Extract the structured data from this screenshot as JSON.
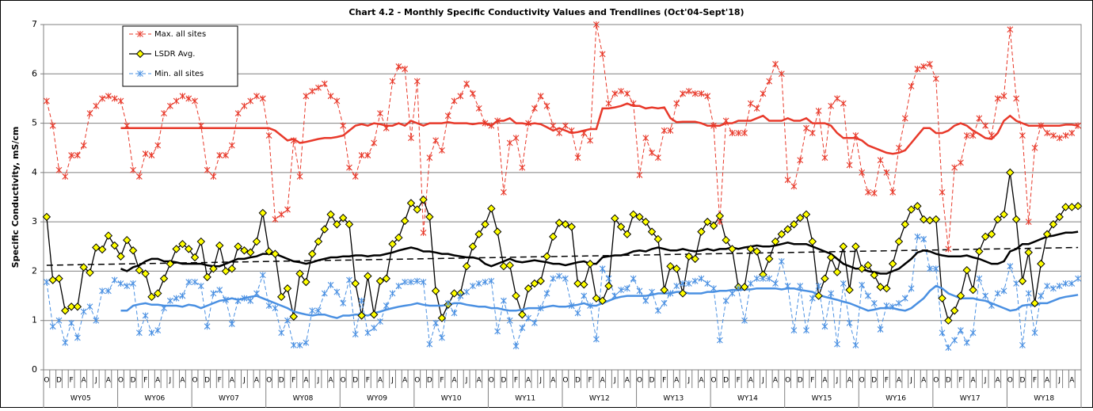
{
  "chart_data": {
    "type": "line",
    "title": "Chart 4.2 - Monthly Specific Conductivity Values and Trendlines (Oct'04-Sept'18)",
    "y_label": "Specific Conductivity, mS/cm",
    "categories": [
      "O",
      null,
      "D",
      null,
      "F",
      null,
      "A",
      null,
      "J",
      null,
      "A",
      null,
      "O",
      null,
      "D",
      null,
      "F",
      null,
      "A",
      null,
      "J",
      null,
      "A",
      null,
      "O",
      null,
      "D",
      null,
      "F",
      null,
      "A",
      null,
      "J",
      null,
      "A",
      null,
      "O",
      null,
      "D",
      null,
      "F",
      null,
      "A",
      null,
      "J",
      null,
      "A",
      null,
      "O",
      null,
      "D",
      null,
      "F",
      null,
      "A",
      null,
      "J",
      null,
      "A",
      null,
      "O",
      null,
      "D",
      null,
      "F",
      null,
      "A",
      null,
      "J",
      null,
      "A",
      null,
      "O",
      null,
      "D",
      null,
      "F",
      null,
      "A",
      null,
      "J",
      null,
      "A",
      null,
      "O",
      null,
      "D",
      null,
      "F",
      null,
      "A",
      null,
      "J",
      null,
      "A",
      null,
      "O",
      null,
      "D",
      null,
      "F",
      null,
      "A",
      null,
      "J",
      null,
      "A",
      null,
      "O",
      null,
      "D",
      null,
      "F",
      null,
      "A",
      null,
      "J",
      null,
      "A",
      null,
      "O",
      null,
      "D",
      null,
      "F",
      null,
      "A",
      null,
      "J",
      null,
      "A",
      null,
      "O",
      null,
      "D",
      null,
      "F",
      null,
      "A",
      null,
      "J",
      null,
      "A",
      null,
      "O",
      null,
      "D",
      null,
      "F",
      null,
      "A",
      null,
      "J",
      null,
      "A",
      null,
      "O",
      null,
      "D",
      null,
      "F",
      null,
      "A",
      null,
      "J",
      null,
      "A",
      null
    ],
    "groups": [
      "WY05",
      "WY06",
      "WY07",
      "WY08",
      "WY09",
      "WY10",
      "WY11",
      "WY12",
      "WY13",
      "WY14",
      "WY15",
      "WY16",
      "WY17",
      "WY18"
    ],
    "ylim": [
      0,
      7
    ],
    "yticks": [
      0,
      1,
      2,
      3,
      4,
      5,
      6,
      7
    ],
    "grid": true,
    "series": [
      {
        "name": "Max. all sites",
        "color": "#e8392a",
        "marker": "star",
        "values": [
          5.45,
          4.95,
          4.05,
          3.92,
          4.35,
          4.35,
          4.55,
          5.2,
          5.35,
          5.5,
          5.55,
          5.5,
          5.45,
          4.95,
          4.05,
          3.92,
          4.38,
          4.35,
          4.55,
          5.2,
          5.35,
          5.45,
          5.55,
          5.5,
          5.45,
          4.95,
          4.05,
          3.92,
          4.35,
          4.35,
          4.55,
          5.2,
          5.35,
          5.45,
          5.55,
          5.5,
          4.75,
          3.05,
          3.15,
          3.25,
          4.65,
          3.92,
          5.55,
          5.65,
          5.72,
          5.8,
          5.55,
          5.45,
          4.95,
          4.1,
          3.92,
          4.35,
          4.35,
          4.6,
          5.2,
          4.9,
          5.85,
          6.15,
          6.1,
          4.7,
          5.85,
          2.78,
          4.3,
          4.65,
          4.45,
          5.15,
          5.45,
          5.55,
          5.8,
          5.6,
          5.3,
          5.0,
          4.95,
          5.05,
          3.6,
          4.6,
          4.7,
          4.1,
          5.0,
          5.3,
          5.55,
          5.35,
          4.95,
          4.8,
          4.95,
          4.85,
          4.3,
          4.8,
          4.65,
          7.0,
          6.4,
          5.4,
          5.6,
          5.65,
          5.6,
          5.4,
          3.95,
          4.7,
          4.4,
          4.3,
          4.85,
          4.85,
          5.4,
          5.6,
          5.65,
          5.6,
          5.6,
          5.55,
          4.95,
          3.0,
          5.05,
          4.8,
          4.8,
          4.8,
          5.4,
          5.3,
          5.6,
          5.85,
          6.2,
          6.0,
          3.85,
          3.72,
          4.25,
          4.9,
          4.8,
          5.25,
          4.3,
          5.35,
          5.5,
          5.4,
          4.15,
          4.75,
          4.0,
          3.6,
          3.58,
          4.25,
          4.0,
          3.6,
          4.5,
          5.1,
          5.75,
          6.1,
          6.15,
          6.2,
          5.9,
          3.6,
          2.45,
          4.1,
          4.2,
          4.75,
          4.75,
          5.1,
          4.95,
          4.75,
          5.5,
          5.55,
          6.9,
          5.5,
          4.75,
          3.0,
          4.5,
          4.95,
          4.8,
          4.75,
          4.7,
          4.75,
          4.8,
          4.95
        ]
      },
      {
        "name": "LSDR Avg.",
        "color": "#000000",
        "marker": "diamond",
        "values": [
          3.1,
          1.82,
          1.85,
          1.2,
          1.28,
          1.28,
          2.08,
          1.97,
          2.48,
          2.44,
          2.72,
          2.52,
          2.3,
          2.63,
          2.42,
          2.02,
          1.95,
          1.48,
          1.55,
          1.85,
          2.15,
          2.45,
          2.55,
          2.45,
          2.28,
          2.6,
          1.88,
          2.05,
          2.52,
          2.0,
          2.05,
          2.5,
          2.42,
          2.38,
          2.6,
          3.18,
          2.4,
          2.35,
          1.48,
          1.65,
          1.08,
          1.95,
          1.78,
          2.35,
          2.6,
          2.85,
          3.15,
          2.95,
          3.08,
          2.95,
          1.75,
          1.1,
          1.9,
          1.12,
          1.8,
          1.85,
          2.55,
          2.68,
          3.02,
          3.38,
          3.25,
          3.45,
          3.1,
          1.6,
          1.05,
          1.32,
          1.55,
          1.55,
          2.1,
          2.5,
          2.75,
          2.95,
          3.27,
          2.8,
          2.1,
          2.12,
          1.5,
          1.12,
          1.65,
          1.75,
          1.8,
          2.3,
          2.7,
          2.98,
          2.95,
          2.9,
          1.75,
          1.73,
          2.15,
          1.45,
          1.4,
          1.7,
          3.07,
          2.9,
          2.75,
          3.15,
          3.1,
          3.0,
          2.8,
          2.65,
          1.62,
          2.1,
          2.05,
          1.55,
          2.3,
          2.25,
          2.8,
          3.0,
          2.92,
          3.12,
          2.63,
          2.45,
          1.68,
          1.68,
          2.45,
          2.4,
          1.93,
          2.25,
          2.6,
          2.75,
          2.85,
          2.95,
          3.08,
          3.15,
          2.6,
          1.5,
          1.85,
          2.28,
          1.98,
          2.5,
          1.62,
          2.5,
          2.05,
          2.12,
          1.92,
          1.68,
          1.65,
          2.15,
          2.6,
          2.95,
          3.25,
          3.32,
          3.05,
          3.03,
          3.05,
          1.45,
          1.0,
          1.2,
          1.5,
          2.02,
          1.62,
          2.4,
          2.7,
          2.75,
          3.05,
          3.15,
          4.0,
          3.05,
          1.8,
          2.38,
          1.35,
          2.15,
          2.75,
          2.95,
          3.1,
          3.3,
          3.3,
          3.32
        ]
      },
      {
        "name": "Min. all sites",
        "color": "#4a90e2",
        "marker": "star",
        "values": [
          1.78,
          0.88,
          1.0,
          0.55,
          0.95,
          0.65,
          1.18,
          1.28,
          1.0,
          1.6,
          1.6,
          1.82,
          1.75,
          1.7,
          1.75,
          0.75,
          1.1,
          0.75,
          0.8,
          1.25,
          1.4,
          1.45,
          1.5,
          1.78,
          1.78,
          1.7,
          0.88,
          1.55,
          1.62,
          1.42,
          0.93,
          1.4,
          1.45,
          1.4,
          1.55,
          1.92,
          1.3,
          1.25,
          0.75,
          1.0,
          0.5,
          0.5,
          0.55,
          1.2,
          1.2,
          1.55,
          1.72,
          1.58,
          1.35,
          1.82,
          0.72,
          1.4,
          0.75,
          0.85,
          0.98,
          1.3,
          1.55,
          1.7,
          1.78,
          1.78,
          1.8,
          1.78,
          0.52,
          0.95,
          0.65,
          1.35,
          1.15,
          1.5,
          1.58,
          1.7,
          1.75,
          1.78,
          1.8,
          0.78,
          1.4,
          1.0,
          0.48,
          0.85,
          1.05,
          0.95,
          1.25,
          1.55,
          1.85,
          1.9,
          1.85,
          1.3,
          1.15,
          1.5,
          1.3,
          0.62,
          2.05,
          1.85,
          1.5,
          1.62,
          1.65,
          1.85,
          1.6,
          1.4,
          1.58,
          1.2,
          1.35,
          1.55,
          1.7,
          1.75,
          1.75,
          1.8,
          1.85,
          1.75,
          1.65,
          0.6,
          1.4,
          1.55,
          1.65,
          1.0,
          1.75,
          1.85,
          1.85,
          1.85,
          1.75,
          2.2,
          1.7,
          0.8,
          1.7,
          0.8,
          1.45,
          1.7,
          0.88,
          1.55,
          0.52,
          1.75,
          0.95,
          0.5,
          1.72,
          1.5,
          1.35,
          0.82,
          1.3,
          1.28,
          1.35,
          1.45,
          1.65,
          2.7,
          2.65,
          2.05,
          2.05,
          0.75,
          0.45,
          0.6,
          0.8,
          0.55,
          0.75,
          1.85,
          1.5,
          1.3,
          1.55,
          1.6,
          2.1,
          1.75,
          0.5,
          1.55,
          0.75,
          1.5,
          1.7,
          1.65,
          1.7,
          1.75,
          1.75,
          1.85
        ]
      }
    ],
    "trendlines": [
      {
        "color": "#e8392a",
        "values": [
          null,
          null,
          null,
          null,
          null,
          null,
          null,
          null,
          null,
          null,
          null,
          null,
          4.9,
          4.9,
          4.9,
          4.9,
          4.9,
          4.9,
          4.9,
          4.9,
          4.9,
          4.9,
          4.9,
          4.9,
          4.9,
          4.9,
          4.9,
          4.9,
          4.9,
          4.9,
          4.9,
          4.9,
          4.9,
          4.9,
          4.9,
          4.9,
          4.9,
          4.85,
          4.75,
          4.65,
          4.68,
          4.6,
          4.62,
          4.65,
          4.68,
          4.7,
          4.7,
          4.72,
          4.75,
          4.85,
          4.95,
          4.98,
          4.95,
          5.0,
          4.98,
          4.95,
          4.95,
          5.0,
          4.95,
          5.05,
          5.0,
          4.95,
          5.0,
          5.0,
          5.0,
          5.02,
          5.0,
          5.0,
          5.0,
          4.98,
          5.0,
          5.0,
          4.95,
          5.05,
          5.05,
          5.1,
          5.0,
          5.0,
          4.98,
          5.0,
          4.98,
          4.92,
          4.85,
          4.9,
          4.85,
          4.8,
          4.82,
          4.85,
          4.88,
          4.88,
          5.3,
          5.3,
          5.32,
          5.35,
          5.4,
          5.35,
          5.35,
          5.3,
          5.32,
          5.3,
          5.32,
          5.1,
          5.02,
          5.03,
          5.03,
          5.03,
          5.0,
          4.95,
          4.95,
          4.95,
          5.0,
          5.0,
          5.05,
          5.05,
          5.05,
          5.1,
          5.15,
          5.05,
          5.05,
          5.05,
          5.1,
          5.05,
          5.05,
          5.1,
          5.0,
          5.0,
          5.0,
          4.95,
          4.8,
          4.7,
          4.7,
          4.7,
          4.65,
          4.55,
          4.5,
          4.45,
          4.4,
          4.38,
          4.4,
          4.45,
          4.6,
          4.75,
          4.9,
          4.9,
          4.8,
          4.8,
          4.85,
          4.95,
          5.0,
          4.95,
          4.85,
          4.78,
          4.7,
          4.68,
          4.8,
          5.05,
          5.15,
          5.05,
          5.0,
          4.95,
          4.95,
          4.95,
          4.95,
          4.95,
          4.95,
          4.97,
          4.97,
          4.95
        ]
      },
      {
        "color": "#000000",
        "values": [
          null,
          null,
          null,
          null,
          null,
          null,
          null,
          null,
          null,
          null,
          null,
          null,
          2.05,
          2.0,
          2.08,
          2.12,
          2.2,
          2.25,
          2.25,
          2.2,
          2.2,
          2.18,
          2.15,
          2.15,
          2.15,
          2.15,
          2.12,
          2.1,
          2.1,
          2.15,
          2.2,
          2.25,
          2.25,
          2.28,
          2.3,
          2.35,
          2.35,
          2.35,
          2.3,
          2.25,
          2.2,
          2.18,
          2.15,
          2.18,
          2.22,
          2.25,
          2.28,
          2.28,
          2.3,
          2.3,
          2.32,
          2.32,
          2.3,
          2.32,
          2.32,
          2.35,
          2.38,
          2.42,
          2.45,
          2.48,
          2.45,
          2.4,
          2.4,
          2.38,
          2.35,
          2.35,
          2.32,
          2.3,
          2.28,
          2.28,
          2.25,
          2.15,
          2.1,
          2.15,
          2.2,
          2.25,
          2.2,
          2.18,
          2.2,
          2.22,
          2.2,
          2.18,
          2.15,
          2.15,
          2.12,
          2.15,
          2.18,
          2.2,
          2.15,
          2.15,
          2.28,
          2.3,
          2.32,
          2.32,
          2.35,
          2.4,
          2.42,
          2.4,
          2.45,
          2.48,
          2.45,
          2.42,
          2.42,
          2.45,
          2.42,
          2.4,
          2.42,
          2.45,
          2.42,
          2.45,
          2.45,
          2.48,
          2.45,
          2.48,
          2.5,
          2.52,
          2.5,
          2.5,
          2.52,
          2.55,
          2.58,
          2.55,
          2.55,
          2.55,
          2.5,
          2.45,
          2.4,
          2.35,
          2.25,
          2.15,
          2.1,
          2.05,
          2.05,
          2.0,
          1.98,
          1.95,
          1.95,
          2.0,
          2.05,
          2.15,
          2.25,
          2.38,
          2.42,
          2.4,
          2.35,
          2.32,
          2.3,
          2.3,
          2.3,
          2.32,
          2.28,
          2.25,
          2.2,
          2.15,
          2.15,
          2.2,
          2.4,
          2.45,
          2.55,
          2.55,
          2.6,
          2.65,
          2.7,
          2.72,
          2.75,
          2.78,
          2.78,
          2.8
        ]
      },
      {
        "color": "#4a90e2",
        "values": [
          null,
          null,
          null,
          null,
          null,
          null,
          null,
          null,
          null,
          null,
          null,
          null,
          1.2,
          1.2,
          1.3,
          1.33,
          1.35,
          1.32,
          1.32,
          1.3,
          1.3,
          1.3,
          1.28,
          1.32,
          1.3,
          1.25,
          1.3,
          1.35,
          1.4,
          1.42,
          1.45,
          1.42,
          1.45,
          1.48,
          1.5,
          1.45,
          1.4,
          1.35,
          1.3,
          1.25,
          1.18,
          1.15,
          1.12,
          1.1,
          1.12,
          1.12,
          1.08,
          1.05,
          1.1,
          1.1,
          1.12,
          1.12,
          1.1,
          1.15,
          1.18,
          1.22,
          1.25,
          1.28,
          1.3,
          1.32,
          1.35,
          1.32,
          1.3,
          1.3,
          1.3,
          1.32,
          1.35,
          1.35,
          1.32,
          1.3,
          1.28,
          1.28,
          1.25,
          1.25,
          1.22,
          1.2,
          1.2,
          1.22,
          1.25,
          1.25,
          1.25,
          1.28,
          1.3,
          1.28,
          1.28,
          1.3,
          1.32,
          1.35,
          1.3,
          1.3,
          1.35,
          1.4,
          1.45,
          1.48,
          1.5,
          1.5,
          1.5,
          1.5,
          1.52,
          1.55,
          1.55,
          1.55,
          1.58,
          1.58,
          1.55,
          1.55,
          1.55,
          1.58,
          1.58,
          1.6,
          1.6,
          1.62,
          1.62,
          1.63,
          1.63,
          1.65,
          1.65,
          1.65,
          1.65,
          1.63,
          1.65,
          1.65,
          1.62,
          1.6,
          1.58,
          1.52,
          1.48,
          1.45,
          1.42,
          1.38,
          1.35,
          1.3,
          1.25,
          1.2,
          1.22,
          1.25,
          1.25,
          1.25,
          1.22,
          1.2,
          1.25,
          1.35,
          1.45,
          1.6,
          1.7,
          1.65,
          1.55,
          1.5,
          1.45,
          1.45,
          1.45,
          1.42,
          1.4,
          1.35,
          1.3,
          1.25,
          1.2,
          1.22,
          1.3,
          1.32,
          1.3,
          1.35,
          1.35,
          1.4,
          1.45,
          1.48,
          1.5,
          1.52
        ]
      }
    ],
    "linear_trend": {
      "color": "#000000",
      "values": [
        2.12,
        2.48
      ]
    }
  }
}
